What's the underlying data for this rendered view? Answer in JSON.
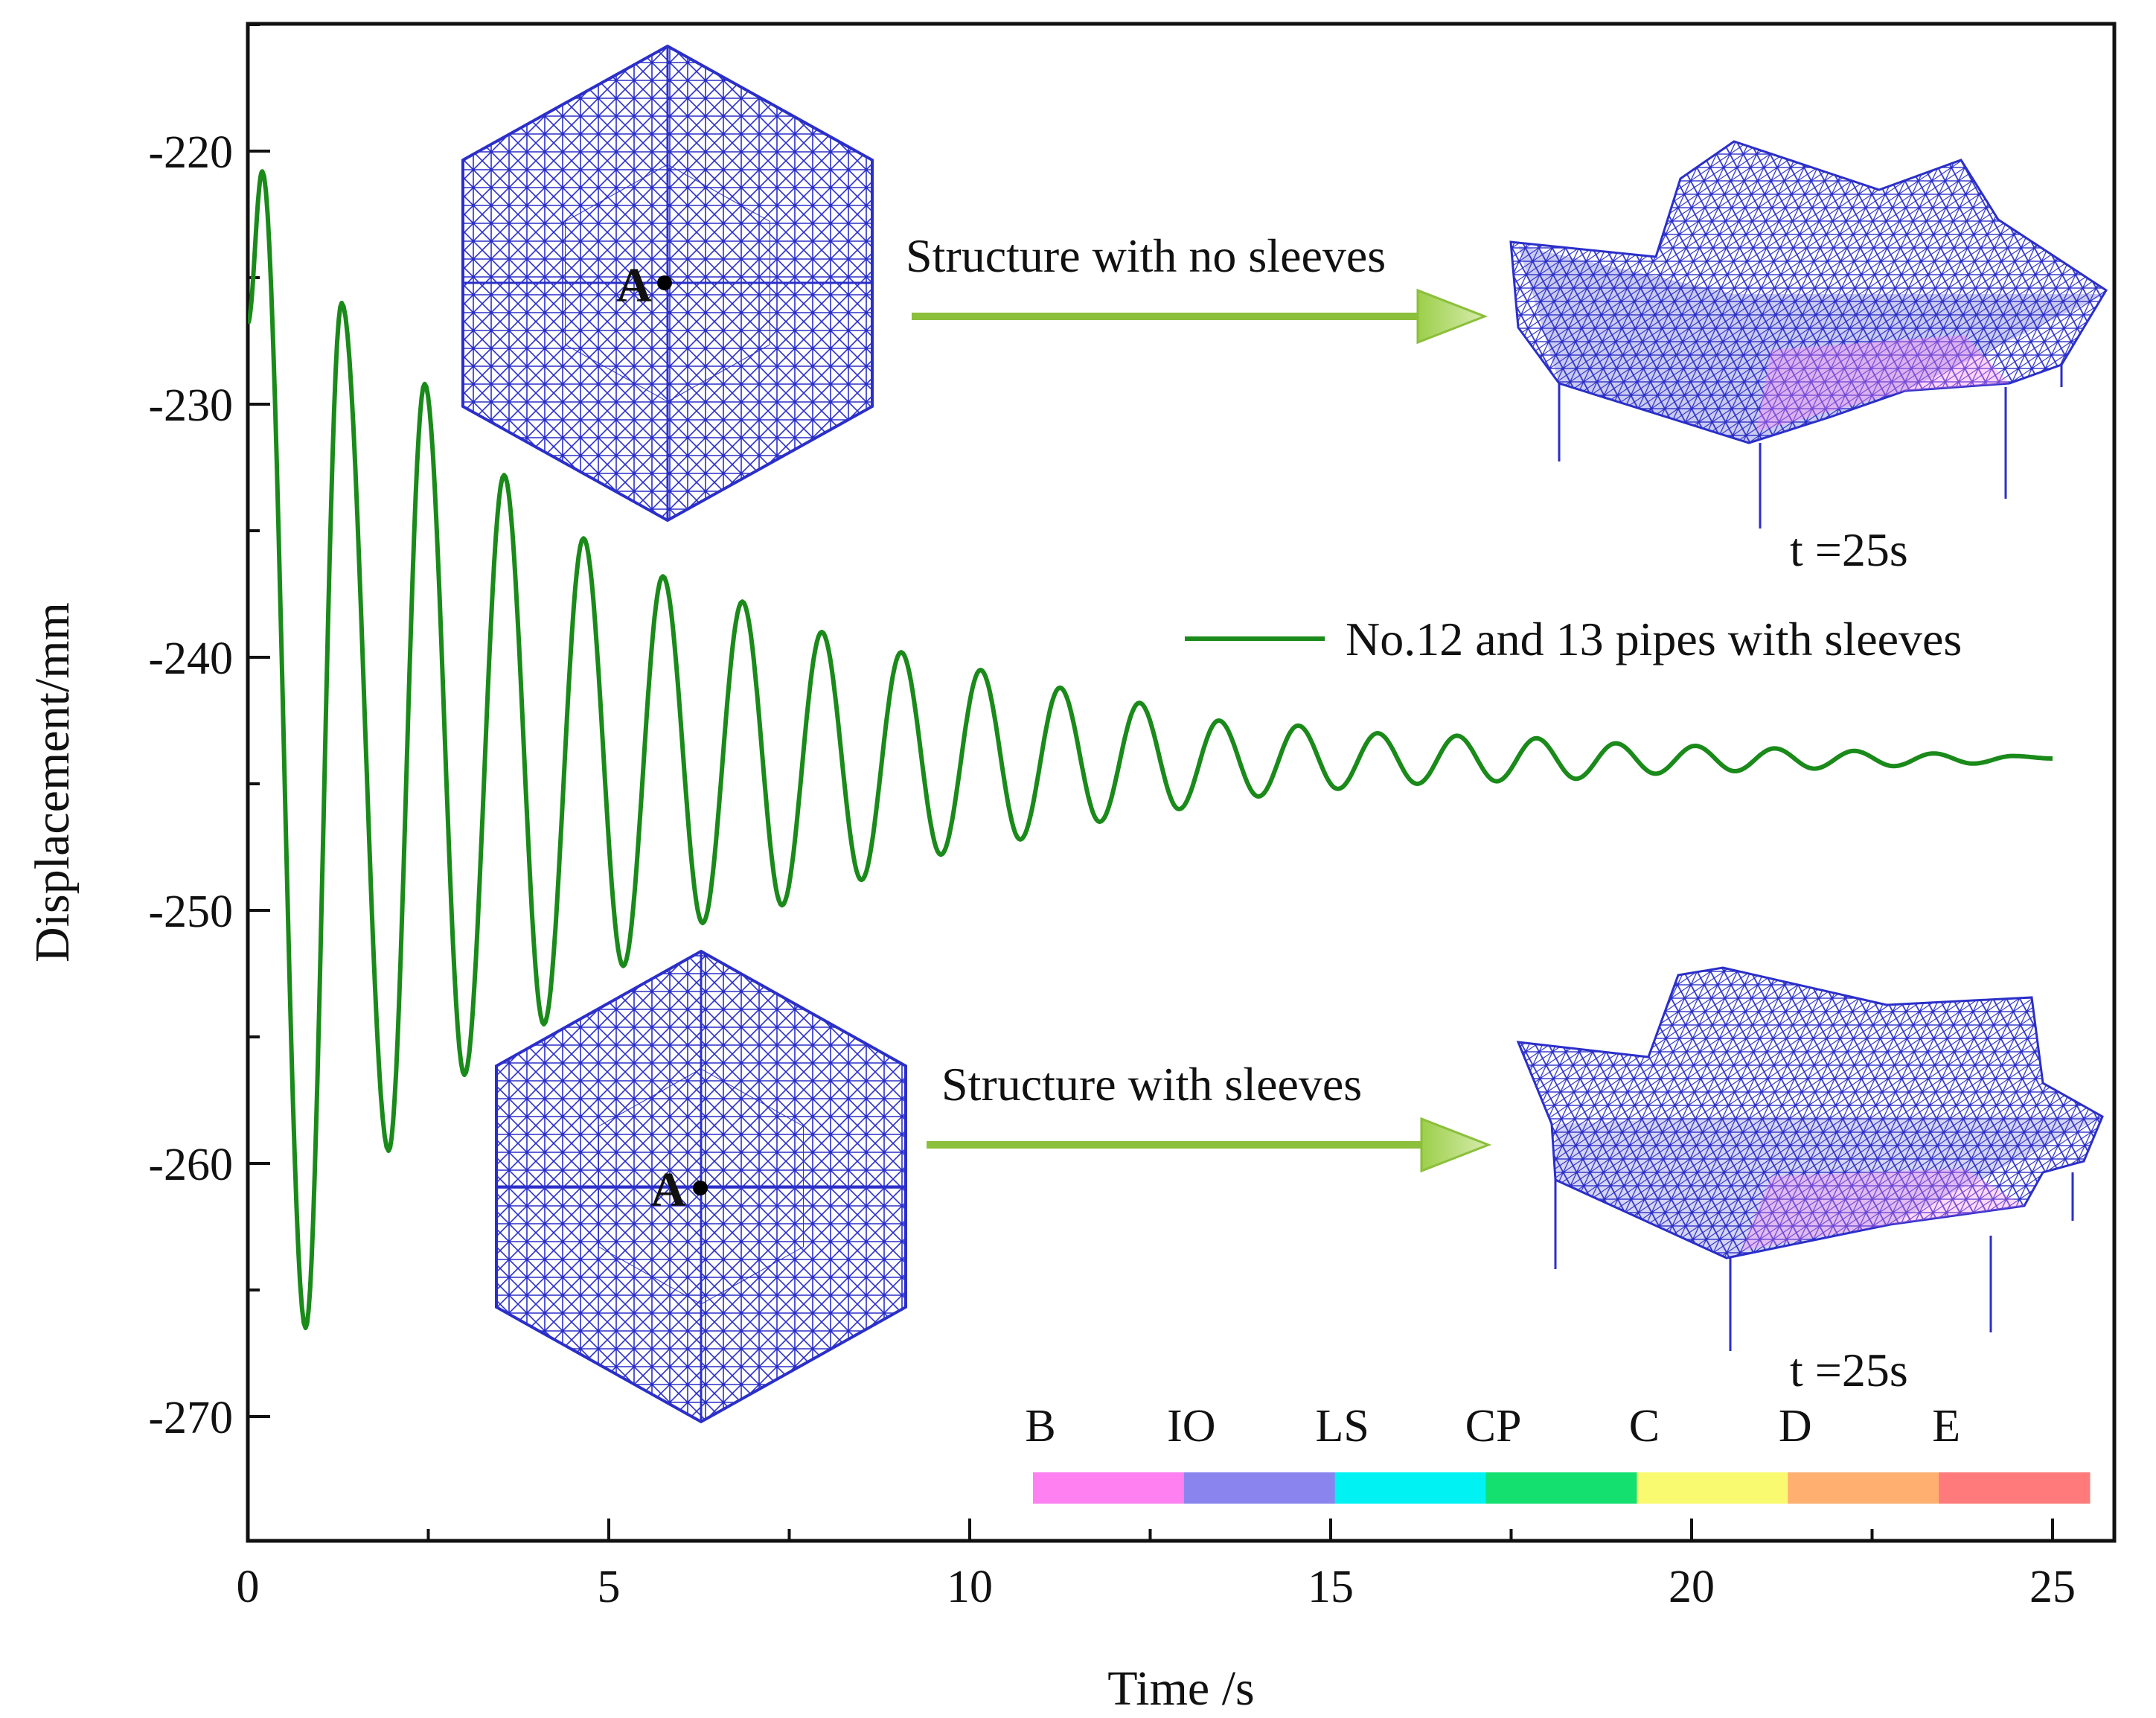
{
  "chart_data": {
    "type": "line",
    "title": "",
    "xlabel": "Time /s",
    "ylabel": "Displacement/mm",
    "xlim": [
      0,
      26
    ],
    "ylim": [
      -275,
      -215
    ],
    "xticks": [
      0,
      5,
      10,
      15,
      20,
      25
    ],
    "xtick_labels": [
      "0",
      "5",
      "10",
      "15",
      "20",
      "25"
    ],
    "yticks": [
      -220,
      -230,
      -240,
      -250,
      -260,
      -270
    ],
    "ytick_labels": [
      "-220",
      "-230",
      "-240",
      "-250",
      "-260",
      "-270"
    ],
    "grid": false,
    "legend": {
      "position": "center-right",
      "entries": [
        "No.12 and 13 pipes with sleeves"
      ]
    },
    "series": [
      {
        "name": "No.12 and 13 pipes with sleeves",
        "color": "#1a8a1a",
        "x": [
          0,
          0.2,
          0.8,
          1.3,
          1.95,
          2.45,
          3.0,
          3.55,
          4.1,
          4.65,
          5.2,
          5.75,
          6.3,
          6.85,
          7.4,
          7.95,
          8.5,
          9.05,
          9.6,
          10.15,
          10.7,
          11.25,
          11.8,
          12.35,
          12.9,
          13.45,
          14.0,
          14.55,
          15.1,
          15.65,
          16.2,
          16.75,
          17.3,
          17.85,
          18.4,
          18.95,
          19.5,
          20.05,
          20.6,
          21.15,
          21.7,
          22.25,
          22.8,
          23.35,
          23.9,
          24.45,
          25.0
        ],
        "values": [
          -226.8,
          -220.8,
          -266.5,
          -226.0,
          -259.5,
          -229.2,
          -256.5,
          -232.8,
          -254.5,
          -235.3,
          -252.2,
          -236.8,
          -250.5,
          -237.8,
          -249.8,
          -239.0,
          -248.8,
          -239.8,
          -247.8,
          -240.5,
          -247.2,
          -241.2,
          -246.5,
          -241.8,
          -246.0,
          -242.5,
          -245.5,
          -242.7,
          -245.2,
          -243.0,
          -245.0,
          -243.1,
          -244.9,
          -243.2,
          -244.8,
          -243.4,
          -244.6,
          -243.5,
          -244.5,
          -243.6,
          -244.4,
          -243.7,
          -244.3,
          -243.8,
          -244.2,
          -243.9,
          -244.0
        ]
      }
    ],
    "annotations": [
      "Structure with no sleeves",
      "Structure with sleeves",
      "t =25s",
      "t =25s",
      "A",
      "A"
    ],
    "color_scale": {
      "labels": [
        "B",
        "IO",
        "LS",
        "CP",
        "C",
        "D",
        "E"
      ],
      "colors": [
        "#ff80f0",
        "#8a85ee",
        "#00f2f2",
        "#14e070",
        "#fafa70",
        "#ffb070",
        "#ff7a7a"
      ]
    }
  },
  "annotations": {
    "top_arrow_text": "Structure with no sleeves",
    "bottom_arrow_text": "Structure with sleeves",
    "top_time": "t =25s",
    "bottom_time": "t =25s",
    "point_label_top": "A",
    "point_label_bottom": "A"
  },
  "colors": {
    "line": "#1a8a1a",
    "mesh": "#2b2fc9",
    "arrow": "#8bbf3c",
    "marker_letter": "#b0143c"
  }
}
